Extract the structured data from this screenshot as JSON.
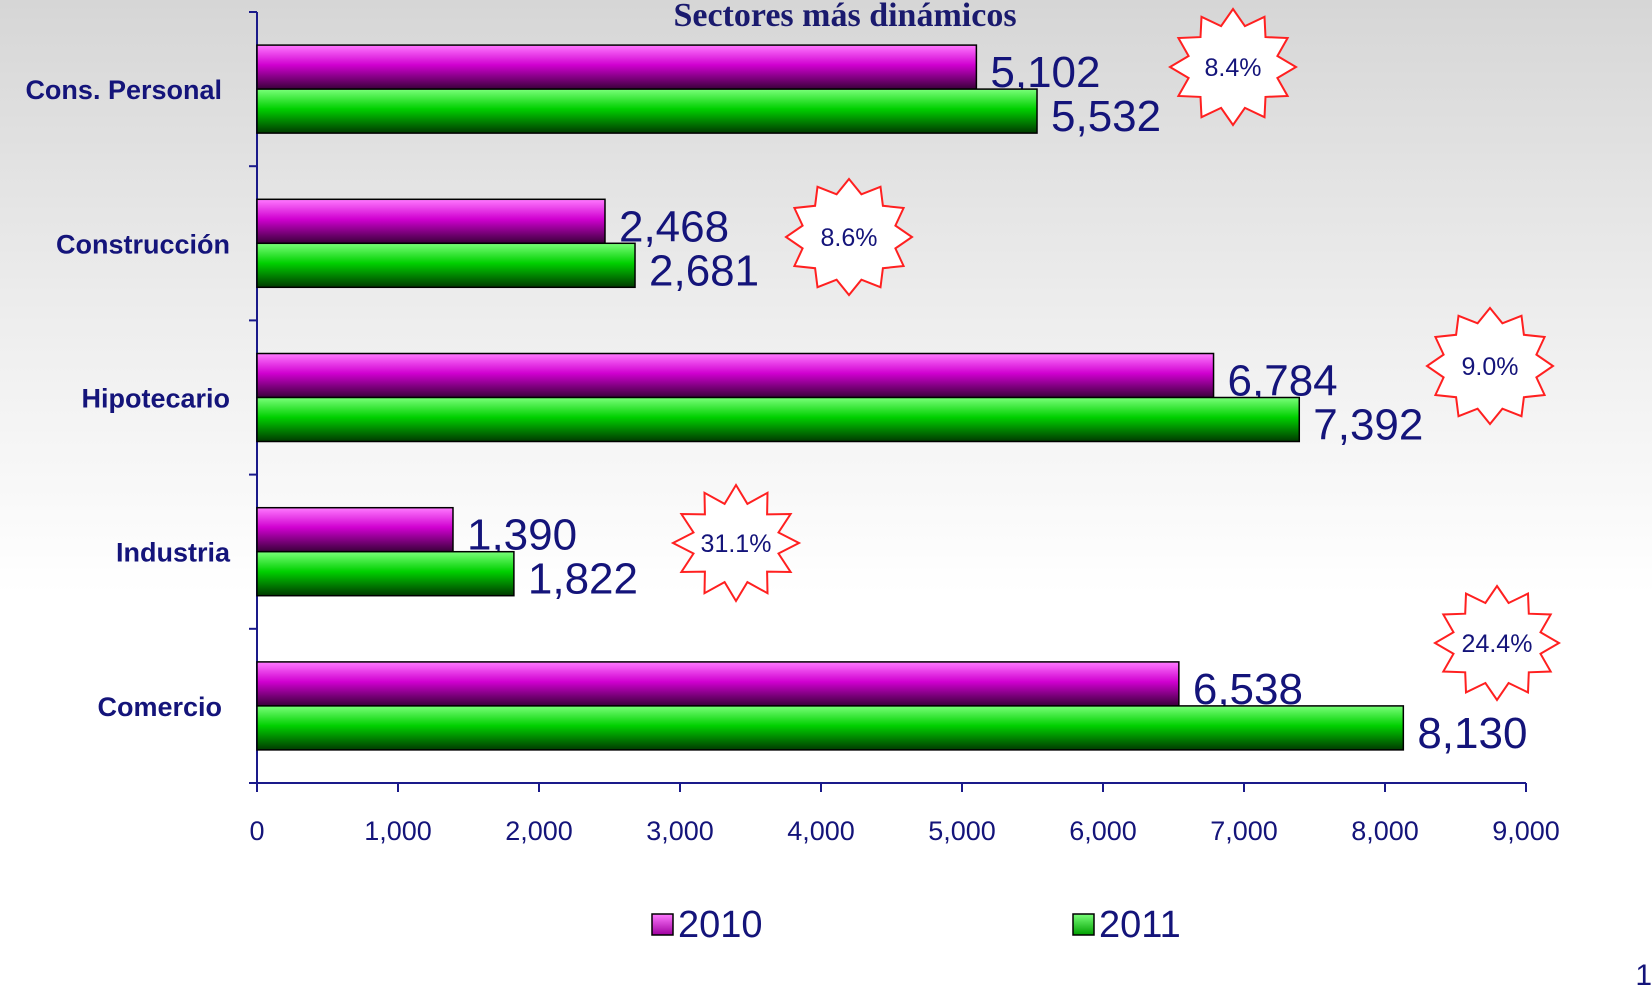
{
  "chart_data": {
    "type": "bar",
    "orientation": "horizontal",
    "title": "Sectores más dinámicos",
    "categories": [
      "Cons. Personal",
      "Construcción",
      "Hipotecario",
      "Industria",
      "Comercio"
    ],
    "series": [
      {
        "name": "2010",
        "values": [
          5102,
          2468,
          6784,
          1390,
          6538
        ],
        "color": "#c000c0"
      },
      {
        "name": "2011",
        "values": [
          5532,
          2681,
          7392,
          1822,
          8130
        ],
        "color": "#00cc00"
      }
    ],
    "value_labels": {
      "2010": [
        "5,102",
        "2,468",
        "6,784",
        "1,390",
        "6,538"
      ],
      "2011": [
        "5,532",
        "2,681",
        "7,392",
        "1,822",
        "8,130"
      ]
    },
    "growth_labels": [
      "8.4%",
      "8.6%",
      "9.0%",
      "31.1%",
      "24.4%"
    ],
    "xlim": [
      0,
      9000
    ],
    "xticks": [
      0,
      1000,
      2000,
      3000,
      4000,
      5000,
      6000,
      7000,
      8000,
      9000
    ],
    "xtick_labels": [
      "0",
      "1,000",
      "2,000",
      "3,000",
      "4,000",
      "5,000",
      "6,000",
      "7,000",
      "8,000",
      "9,000"
    ],
    "legend_position": "bottom",
    "grid": false
  },
  "colors": {
    "axis": "#1a1a8a",
    "text": "#14147a",
    "burst_stroke": "#ff2020"
  },
  "page_number": "1"
}
